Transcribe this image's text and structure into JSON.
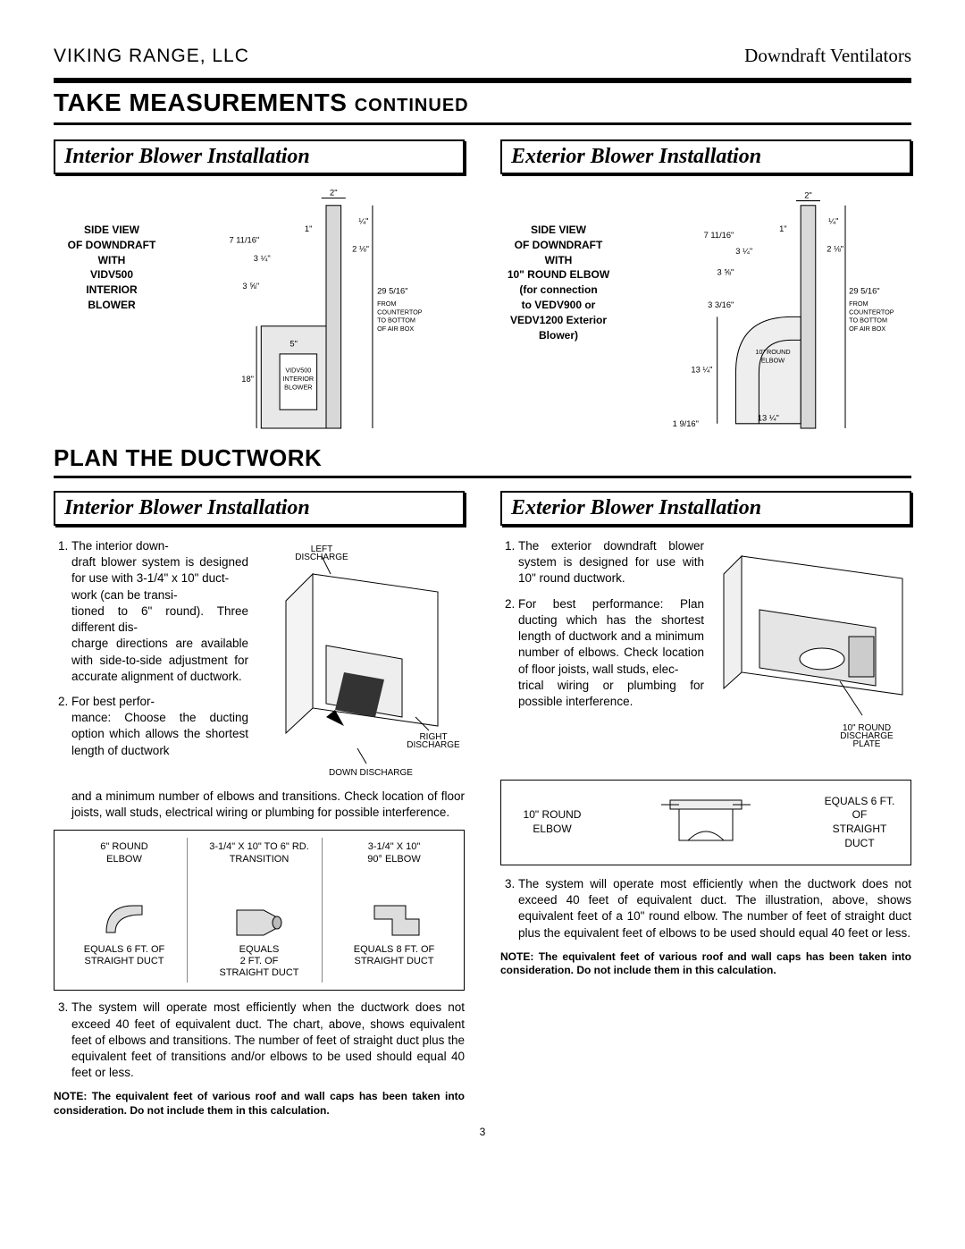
{
  "header": {
    "left": "VIKING RANGE, LLC",
    "right": "Downdraft Ventilators"
  },
  "title": {
    "main": "TAKE MEASUREMENTS ",
    "sub": "CONTINUED"
  },
  "section2_title": "PLAN THE DUCTWORK",
  "page_number": "3",
  "interior": {
    "subheader": "Interior Blower Installation",
    "sideview_label": "SIDE VIEW\nOF DOWNDRAFT\nWITH\nVIDV500\nINTERIOR\nBLOWER",
    "dims": {
      "top_width": "2\"",
      "top_gap": "1\"",
      "q": "¼\"",
      "d1": "7 11/16\"",
      "d2": "3 ¼\"",
      "d3": "3 ⅝\"",
      "r1": "2 ⅛\"",
      "height": "29 5/16\"",
      "height_note": "FROM\nCOUNTERTOP\nTO BOTTOM\nOF AIR BOX",
      "blower_w": "5\"",
      "blower_h": "18\"",
      "blower_label": "VIDV500\nINTERIOR\nBLOWER"
    },
    "plan_list": [
      "The interior  down-\ndraft blower system is designed for use with 3-1/4\" x 10\" duct-\nwork (can be transi-\ntioned to 6\" round). Three different dis-\ncharge directions are available with side-to-side adjustment for accurate alignment of ductwork.",
      "For best perfor-\nmance: Choose the ducting option which allows the shortest length of ductwork"
    ],
    "plan_tail": "and a minimum number of elbows and transitions. Check location of floor joists, wall studs, electrical wiring or plumbing for possible interference.",
    "plan_labels": {
      "left": "LEFT\nDISCHARGE",
      "right": "RIGHT\nDISCHARGE",
      "down": "DOWN DISCHARGE"
    },
    "duct_table": [
      {
        "top": "6\" ROUND\nELBOW",
        "bot": "EQUALS 6 FT. OF\nSTRAIGHT DUCT"
      },
      {
        "top": "3-1/4\" X 10\" TO 6\" RD.\nTRANSITION",
        "bot": "EQUALS\n2 FT. OF\nSTRAIGHT DUCT"
      },
      {
        "top": "3-1/4\" X 10\"\n90° ELBOW",
        "bot": "EQUALS 8 FT. OF\nSTRAIGHT DUCT"
      }
    ],
    "item3": "The system will operate most efficiently when the ductwork does not exceed 40 feet of equivalent duct. The chart, above, shows equivalent feet of elbows and transitions. The number of feet of straight duct plus the equivalent feet of transitions and/or elbows to be used should equal 40 feet or less.",
    "note": "NOTE: The equivalent feet of various roof and wall caps has been taken into consideration. Do not include them in this calculation."
  },
  "exterior": {
    "subheader": "Exterior Blower Installation",
    "sideview_label": "SIDE VIEW\nOF DOWNDRAFT\nWITH\n10\" ROUND ELBOW\n(for connection\nto VEDV900 or\nVEDV1200 Exterior\nBlower)",
    "dims": {
      "top_width": "2\"",
      "top_gap": "1\"",
      "q": "¼\"",
      "d1": "7 11/16\"",
      "d2": "3 ¼\"",
      "d3": "3 ⅝\"",
      "d4": "3 3/16\"",
      "r1": "2 ⅛\"",
      "height": "29 5/16\"",
      "height_note": "FROM\nCOUNTERTOP\nTO BOTTOM\nOF AIR BOX",
      "elbow_w": "13 ¼\"",
      "elbow_h": "13 ¼\"",
      "bottom_gap": "1 9/16\"",
      "elbow_label": "10\" ROUND\nELBOW"
    },
    "plan_list": [
      "The exterior downdraft blower system is designed for use with 10\" round ductwork.",
      "For best performance: Plan ducting which has the shortest length of ductwork and a minimum number of elbows. Check location of floor joists, wall studs, elec-\ntrical wiring or plumbing for possible interference."
    ],
    "plan_label": "10\" ROUND\nDISCHARGE\nPLATE",
    "elbow_box": {
      "left_label": "10\" ROUND\nELBOW",
      "right_label": "EQUALS 6 FT. OF\nSTRAIGHT DUCT"
    },
    "item3": "The system will operate most efficiently when the ductwork does not exceed 40 feet of equivalent duct. The illustration, above, shows equivalent feet of a 10\" round elbow. The number of feet of straight duct plus the equivalent feet of elbows to be used should equal 40 feet or less.",
    "note": "NOTE: The equivalent feet of various roof and wall caps has been taken into consideration. Do not include them in this calculation."
  }
}
